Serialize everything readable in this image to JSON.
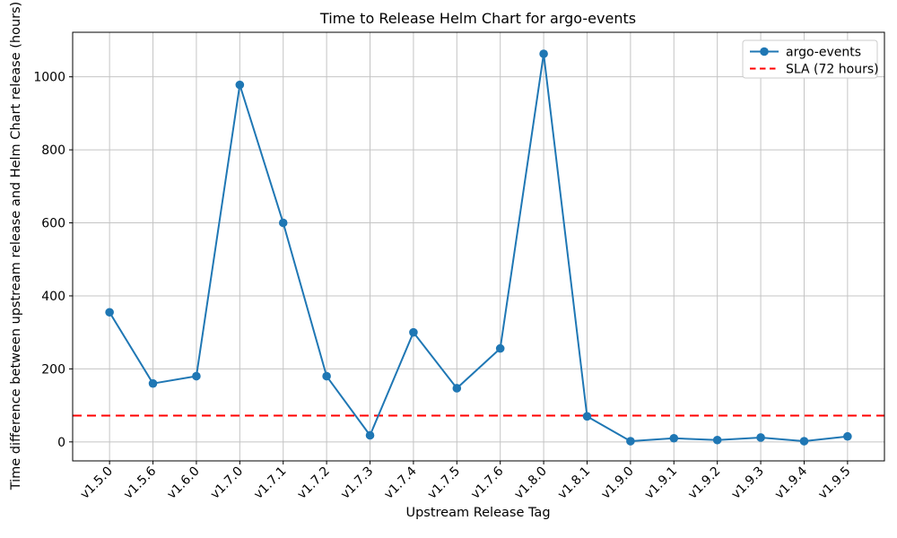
{
  "chart_data": {
    "type": "line",
    "title": "Time to Release Helm Chart for argo-events",
    "xlabel": "Upstream Release Tag",
    "ylabel": "Time difference between upstream release and Helm Chart release (hours)",
    "categories": [
      "v1.5.0",
      "v1.5.6",
      "v1.6.0",
      "v1.7.0",
      "v1.7.1",
      "v1.7.2",
      "v1.7.3",
      "v1.7.4",
      "v1.7.5",
      "v1.7.6",
      "v1.8.0",
      "v1.8.1",
      "v1.9.0",
      "v1.9.1",
      "v1.9.2",
      "v1.9.3",
      "v1.9.4",
      "v1.9.5"
    ],
    "series": [
      {
        "name": "argo-events",
        "color": "#1f77b4",
        "marker": "circle",
        "values": [
          355,
          160,
          180,
          978,
          600,
          180,
          18,
          300,
          147,
          256,
          1063,
          70,
          2,
          10,
          5,
          12,
          2,
          15
        ]
      }
    ],
    "reference_lines": [
      {
        "name": "SLA (72 hours)",
        "value": 72,
        "color": "#ff0000",
        "style": "dashed"
      }
    ],
    "legend": {
      "position": "upper right",
      "entries": [
        {
          "label": "argo-events"
        },
        {
          "label": "SLA (72 hours)"
        }
      ]
    },
    "yticks": [
      0,
      200,
      400,
      600,
      800,
      1000
    ],
    "ylim": [
      -52,
      1122
    ],
    "xlim": [
      -0.85,
      17.85
    ],
    "grid": true,
    "grid_color": "#c4c4c4",
    "spine_color": "#000000",
    "background_color": "#ffffff"
  }
}
